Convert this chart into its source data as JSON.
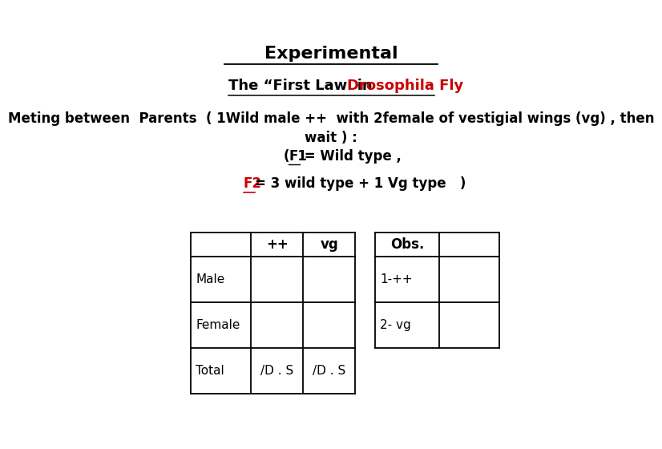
{
  "title": "Experimental",
  "subtitle_black": "The “First Law  in ",
  "subtitle_red": "Drosophila Fly",
  "line1": "Meting between  Parents  ( 1Wild male ++  with 2female of vestigial wings (vg) , then",
  "line2": "wait ) :",
  "line3_pre": "(",
  "line3_f1": "F1",
  "line3_post": " = Wild type ,",
  "f2_red": "F2",
  "f2_black": "= 3 wild type + 1 Vg type   )",
  "table1_headers": [
    "",
    "++",
    "vg"
  ],
  "table1_rows": [
    [
      "Male",
      "",
      ""
    ],
    [
      "Female",
      "",
      ""
    ],
    [
      "Total",
      "/D . S",
      "/D . S"
    ]
  ],
  "table2_headers": [
    "Obs.",
    ""
  ],
  "table2_rows": [
    [
      "1-++",
      ""
    ],
    [
      "2- vg",
      ""
    ]
  ],
  "bg_color": "#ffffff",
  "text_color": "#000000",
  "red_color": "#cc0000"
}
